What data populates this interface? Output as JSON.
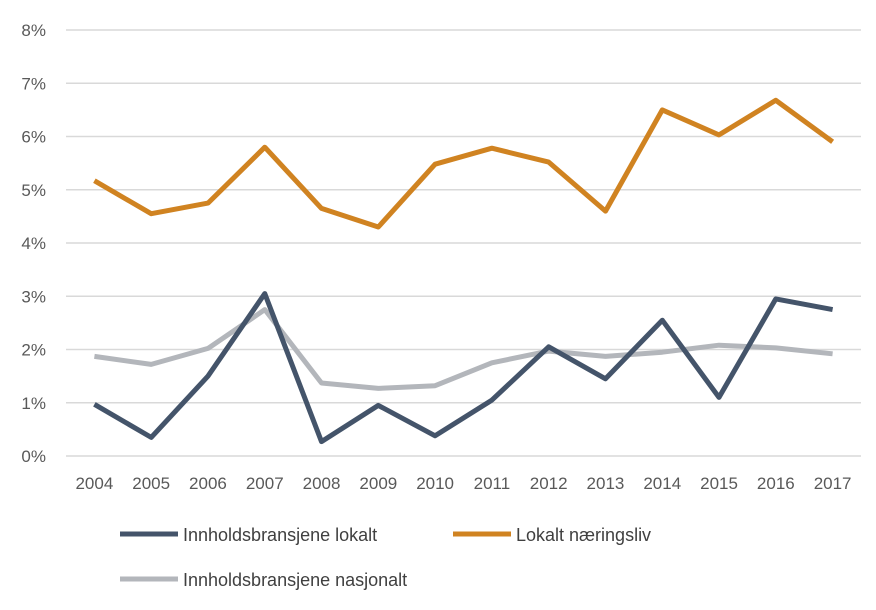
{
  "chart_data": {
    "type": "line",
    "title": "",
    "xlabel": "",
    "ylabel": "",
    "categories": [
      "2004",
      "2005",
      "2006",
      "2007",
      "2008",
      "2009",
      "2010",
      "2011",
      "2012",
      "2013",
      "2014",
      "2015",
      "2016",
      "2017"
    ],
    "y_ticks": [
      "0%",
      "1%",
      "2%",
      "3%",
      "4%",
      "5%",
      "6%",
      "7%",
      "8%"
    ],
    "ylim": [
      0,
      8
    ],
    "grid": true,
    "legend_position": "bottom",
    "series": [
      {
        "name": "Innholdsbransjene lokalt",
        "color": "#44546a",
        "values": [
          0.97,
          0.35,
          1.5,
          3.05,
          0.27,
          0.95,
          0.38,
          1.05,
          2.05,
          1.45,
          2.55,
          1.1,
          2.95,
          2.75
        ]
      },
      {
        "name": "Lokalt næringsliv",
        "color": "#d08321",
        "values": [
          5.17,
          4.55,
          4.75,
          5.8,
          4.65,
          4.3,
          5.48,
          5.78,
          5.52,
          4.6,
          6.5,
          6.03,
          6.68,
          5.9
        ]
      },
      {
        "name": "Innholdsbransjene nasjonalt",
        "color": "#b3b6bb",
        "values": [
          1.87,
          1.72,
          2.02,
          2.75,
          1.37,
          1.27,
          1.32,
          1.75,
          1.97,
          1.87,
          1.95,
          2.08,
          2.03,
          1.92
        ]
      }
    ]
  }
}
